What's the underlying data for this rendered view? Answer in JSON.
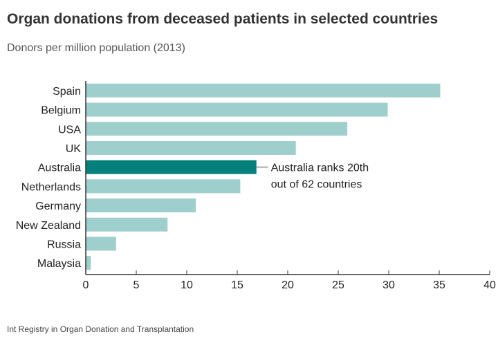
{
  "title": "Organ donations from deceased patients in selected countries",
  "subtitle": "Donors per million population (2013)",
  "source": "Int Registry in Organ Donation and Transplantation",
  "colors": {
    "bar": "#9fcfcc",
    "highlight": "#05807a",
    "axis": "#333333"
  },
  "chart_data": {
    "type": "bar",
    "orientation": "horizontal",
    "categories": [
      "Spain",
      "Belgium",
      "USA",
      "UK",
      "Australia",
      "Netherlands",
      "Germany",
      "New Zealand",
      "Russia",
      "Malaysia"
    ],
    "values": [
      35.1,
      29.9,
      25.9,
      20.8,
      16.9,
      15.3,
      10.9,
      8.1,
      3.0,
      0.5
    ],
    "highlight": "Australia",
    "xlim": [
      0,
      40
    ],
    "xticks": [
      "0",
      "5",
      "10",
      "15",
      "20",
      "25",
      "30",
      "35",
      "40"
    ],
    "xlabel": "",
    "ylabel": "",
    "grid": false,
    "annotation": {
      "target": "Australia",
      "lines": [
        "Australia ranks 20th",
        "out of 62 countries"
      ]
    }
  }
}
